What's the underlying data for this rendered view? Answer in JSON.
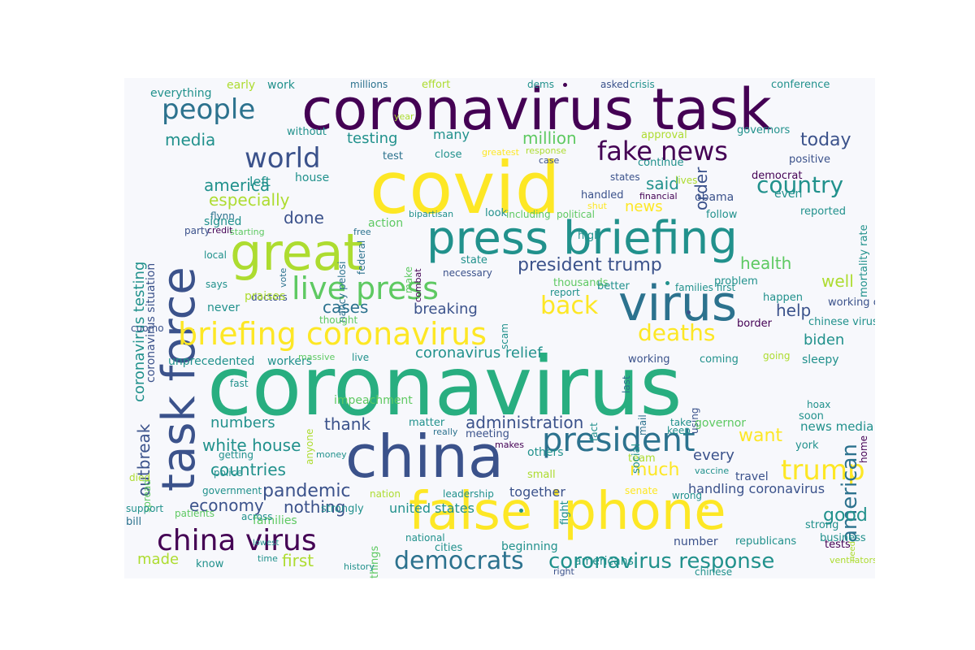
{
  "palette": {
    "background": "#f7f8fc",
    "dark_purple": "#440154",
    "indigo": "#3b528b",
    "teal_blue": "#2c728e",
    "teal": "#21918c",
    "green": "#28ae80",
    "light_green": "#5ec962",
    "yellow_green": "#addc30",
    "yellow": "#fde725"
  },
  "words": [
    "coronavirus task",
    "covid",
    "press briefing",
    "great",
    "task force",
    "virus",
    "briefing coronavirus",
    "live press",
    "coronavirus",
    "china",
    "false iphone",
    "president",
    "trump",
    "democrats",
    "coronavirus response",
    "china virus",
    "fake news",
    "people",
    "world",
    "country",
    "back",
    "deaths",
    "million",
    "testing",
    "media",
    "today",
    "said",
    "america",
    "especially",
    "done",
    "cases",
    "breaking",
    "president trump",
    "health",
    "well",
    "help",
    "biden",
    "american",
    "coronavirus relief",
    "administration",
    "want",
    "white house",
    "numbers",
    "thank",
    "countries",
    "much",
    "every",
    "pandemic",
    "economy",
    "nothing",
    "good",
    "made",
    "first",
    "handling coronavirus",
    "together",
    "united states",
    "coronavirus testing",
    "coronavirus situation",
    "outbreak",
    "order",
    "everything",
    "early",
    "work",
    "millions",
    "effort",
    "dems",
    "asked",
    "crisis",
    "conference",
    "governors",
    "approval",
    "mortality rate",
    "year",
    "without",
    "test",
    "close",
    "greatest",
    "response",
    "case",
    "positive",
    "many",
    "flynn",
    "credit",
    "house",
    "federal",
    "nancy pelosi",
    "states",
    "handled",
    "continue",
    "lives",
    "democrat",
    "shut",
    "financial",
    "obama",
    "even",
    "news",
    "left",
    "signed",
    "party",
    "starting",
    "free",
    "action",
    "bipartisan",
    "look",
    "including",
    "political",
    "follow",
    "reported",
    "local",
    "vote",
    "make",
    "combat",
    "high",
    "state",
    "necessary",
    "says",
    "doctors",
    "scam",
    "thousands",
    "better",
    "report",
    "problem",
    "families first",
    "happen",
    "praises",
    "never",
    "working closely",
    "cuomo",
    "thought",
    "chinese virus",
    "border",
    "last",
    "unprecedented",
    "workers",
    "massive",
    "live",
    "working",
    "coming",
    "going",
    "sleepy",
    "fast",
    "fact",
    "mail",
    "using",
    "impeachment",
    "hoax",
    "keep",
    "home",
    "anyone",
    "matter",
    "really",
    "meeting",
    "makes",
    "take",
    "governor",
    "soon",
    "news media",
    "york",
    "spread",
    "getting",
    "money",
    "others",
    "team",
    "vaccine",
    "travel",
    "police",
    "small",
    "died",
    "government",
    "nation",
    "leadership",
    "senate",
    "wrong",
    "support",
    "patients",
    "strongly",
    "families",
    "fight",
    "social",
    "strong",
    "bill",
    "across",
    "things",
    "national",
    "cities",
    "beginning",
    "americans",
    "number",
    "republicans",
    "business",
    "tests",
    "need",
    "lowest",
    "time",
    "know",
    "history",
    "right",
    "chinese",
    "ventilators",
    "trying"
  ]
}
